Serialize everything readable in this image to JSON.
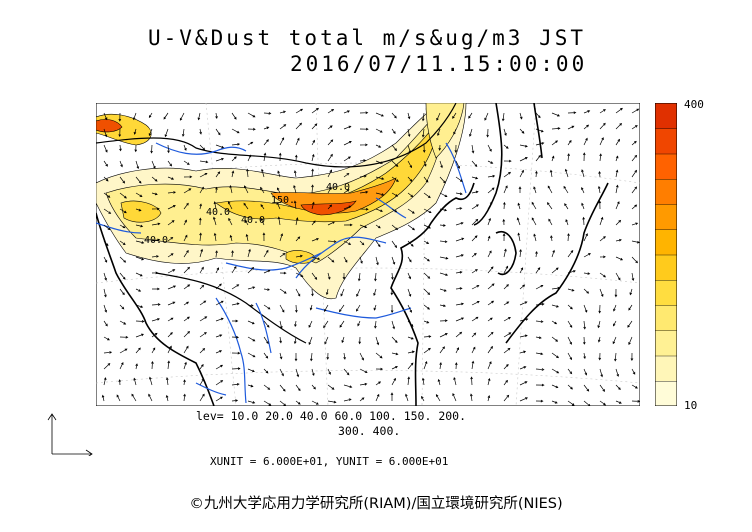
{
  "title": {
    "line1": "U-V&Dust total m/s&ug/m3 JST",
    "line2": "2016/07/11.15:00:00"
  },
  "colorbar": {
    "max_label": "400",
    "min_label": "10",
    "colors": [
      "#fffcd8",
      "#fff6b8",
      "#fff194",
      "#ffe970",
      "#ffdd40",
      "#ffcb1c",
      "#ffb400",
      "#ff9a00",
      "#ff7e00",
      "#ff6200",
      "#f04600",
      "#e03000"
    ]
  },
  "contour_labels": [
    "40.0",
    "40.0",
    "150.",
    "40.0",
    "40.0"
  ],
  "legend": {
    "levels_line1": "lev= 10.0 20.0 40.0 60.0 100. 150. 200.",
    "levels_line2": "300. 400."
  },
  "units": {
    "text": "XUNIT = 6.000E+01, YUNIT = 6.000E+01"
  },
  "copyright": "©九州大学応用力学研究所(RIAM)/国立環境研究所(NIES)",
  "colors": {
    "coast": "#000000",
    "river": "#1e5adc",
    "border": "#000000",
    "grid": "#b0b0b0"
  }
}
